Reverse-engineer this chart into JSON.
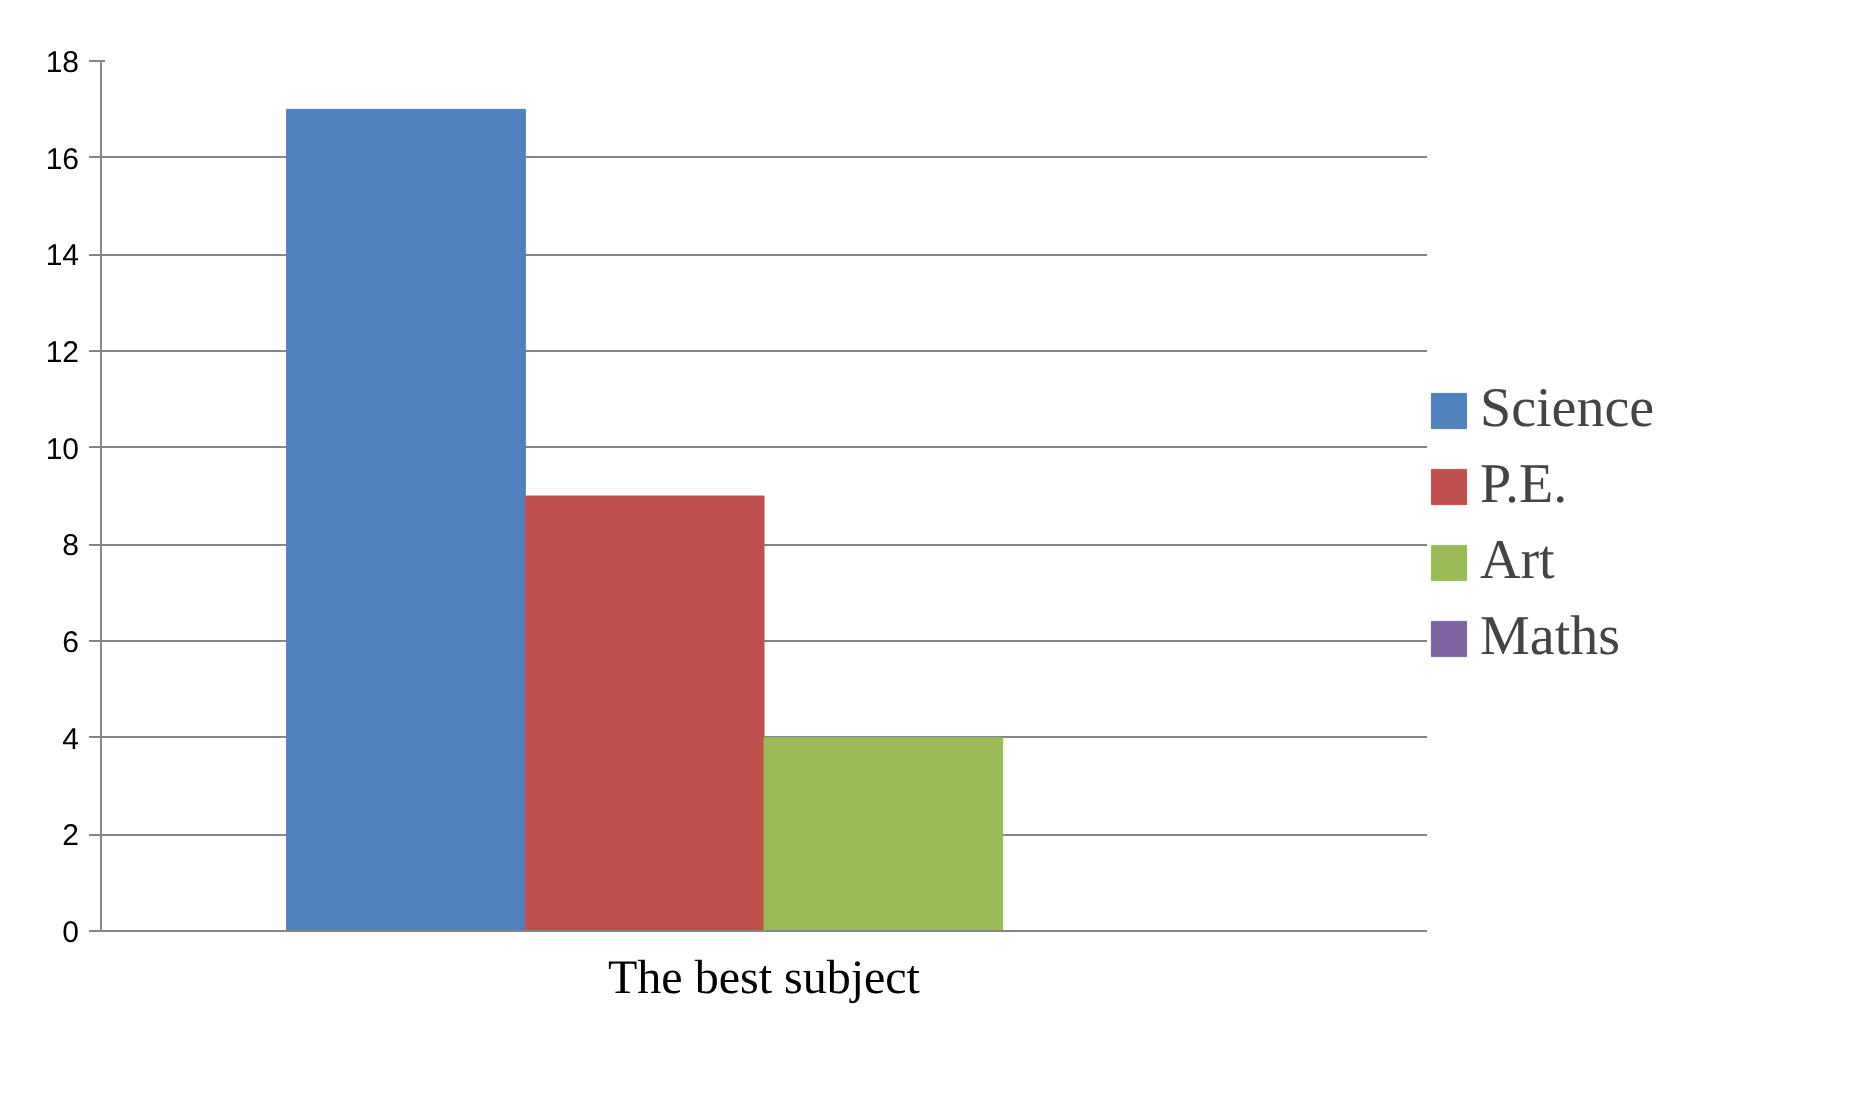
{
  "chart_data": {
    "type": "bar",
    "categories": [
      "The best subject"
    ],
    "series": [
      {
        "name": "Science",
        "color": "#4f81bd",
        "values": [
          17
        ]
      },
      {
        "name": "P.E.",
        "color": "#c0504d",
        "values": [
          9
        ]
      },
      {
        "name": "Art",
        "color": "#9bbb59",
        "values": [
          4
        ]
      },
      {
        "name": "Maths",
        "color": "#8064a2",
        "values": [
          0
        ]
      }
    ],
    "ylim": [
      0,
      18
    ],
    "yticks": [
      0,
      2,
      4,
      6,
      8,
      10,
      12,
      14,
      16,
      18
    ],
    "grid": "y",
    "legend": "right"
  }
}
